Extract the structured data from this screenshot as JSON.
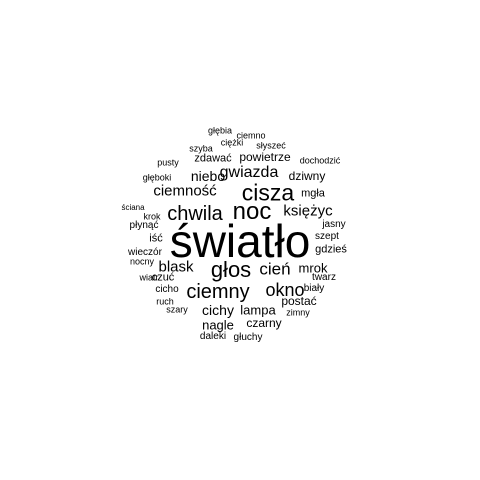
{
  "colors": {
    "background": "#ffffff",
    "text": "#000000"
  },
  "words": [
    {
      "text": "światło"
    },
    {
      "text": "głos"
    },
    {
      "text": "noc"
    },
    {
      "text": "cisza"
    },
    {
      "text": "ciemny"
    },
    {
      "text": "chwila"
    },
    {
      "text": "okno"
    },
    {
      "text": "cień"
    },
    {
      "text": "księżyc"
    },
    {
      "text": "ciemność"
    },
    {
      "text": "gwiazda"
    },
    {
      "text": "blask"
    },
    {
      "text": "mrok"
    },
    {
      "text": "cichy"
    },
    {
      "text": "lampa"
    },
    {
      "text": "nagle"
    },
    {
      "text": "niebo"
    },
    {
      "text": "czarny"
    },
    {
      "text": "dziwny"
    },
    {
      "text": "postać"
    },
    {
      "text": "powietrze"
    },
    {
      "text": "zdawać"
    },
    {
      "text": "mgła"
    },
    {
      "text": "iść"
    },
    {
      "text": "czuć"
    },
    {
      "text": "gdzieś"
    },
    {
      "text": "wieczór"
    },
    {
      "text": "szept"
    },
    {
      "text": "cicho"
    },
    {
      "text": "biały"
    },
    {
      "text": "twarz"
    },
    {
      "text": "jasny"
    },
    {
      "text": "płynąć"
    },
    {
      "text": "ruch"
    },
    {
      "text": "szary"
    },
    {
      "text": "zimny"
    },
    {
      "text": "daleki"
    },
    {
      "text": "głuchy"
    },
    {
      "text": "ciężki"
    },
    {
      "text": "słyszeć"
    },
    {
      "text": "szyba"
    },
    {
      "text": "głęboki"
    },
    {
      "text": "pusty"
    },
    {
      "text": "dochodzić"
    },
    {
      "text": "głębia"
    },
    {
      "text": "ciemno"
    },
    {
      "text": "krok"
    },
    {
      "text": "ściana"
    },
    {
      "text": "nocny"
    },
    {
      "text": "wiatr"
    }
  ]
}
